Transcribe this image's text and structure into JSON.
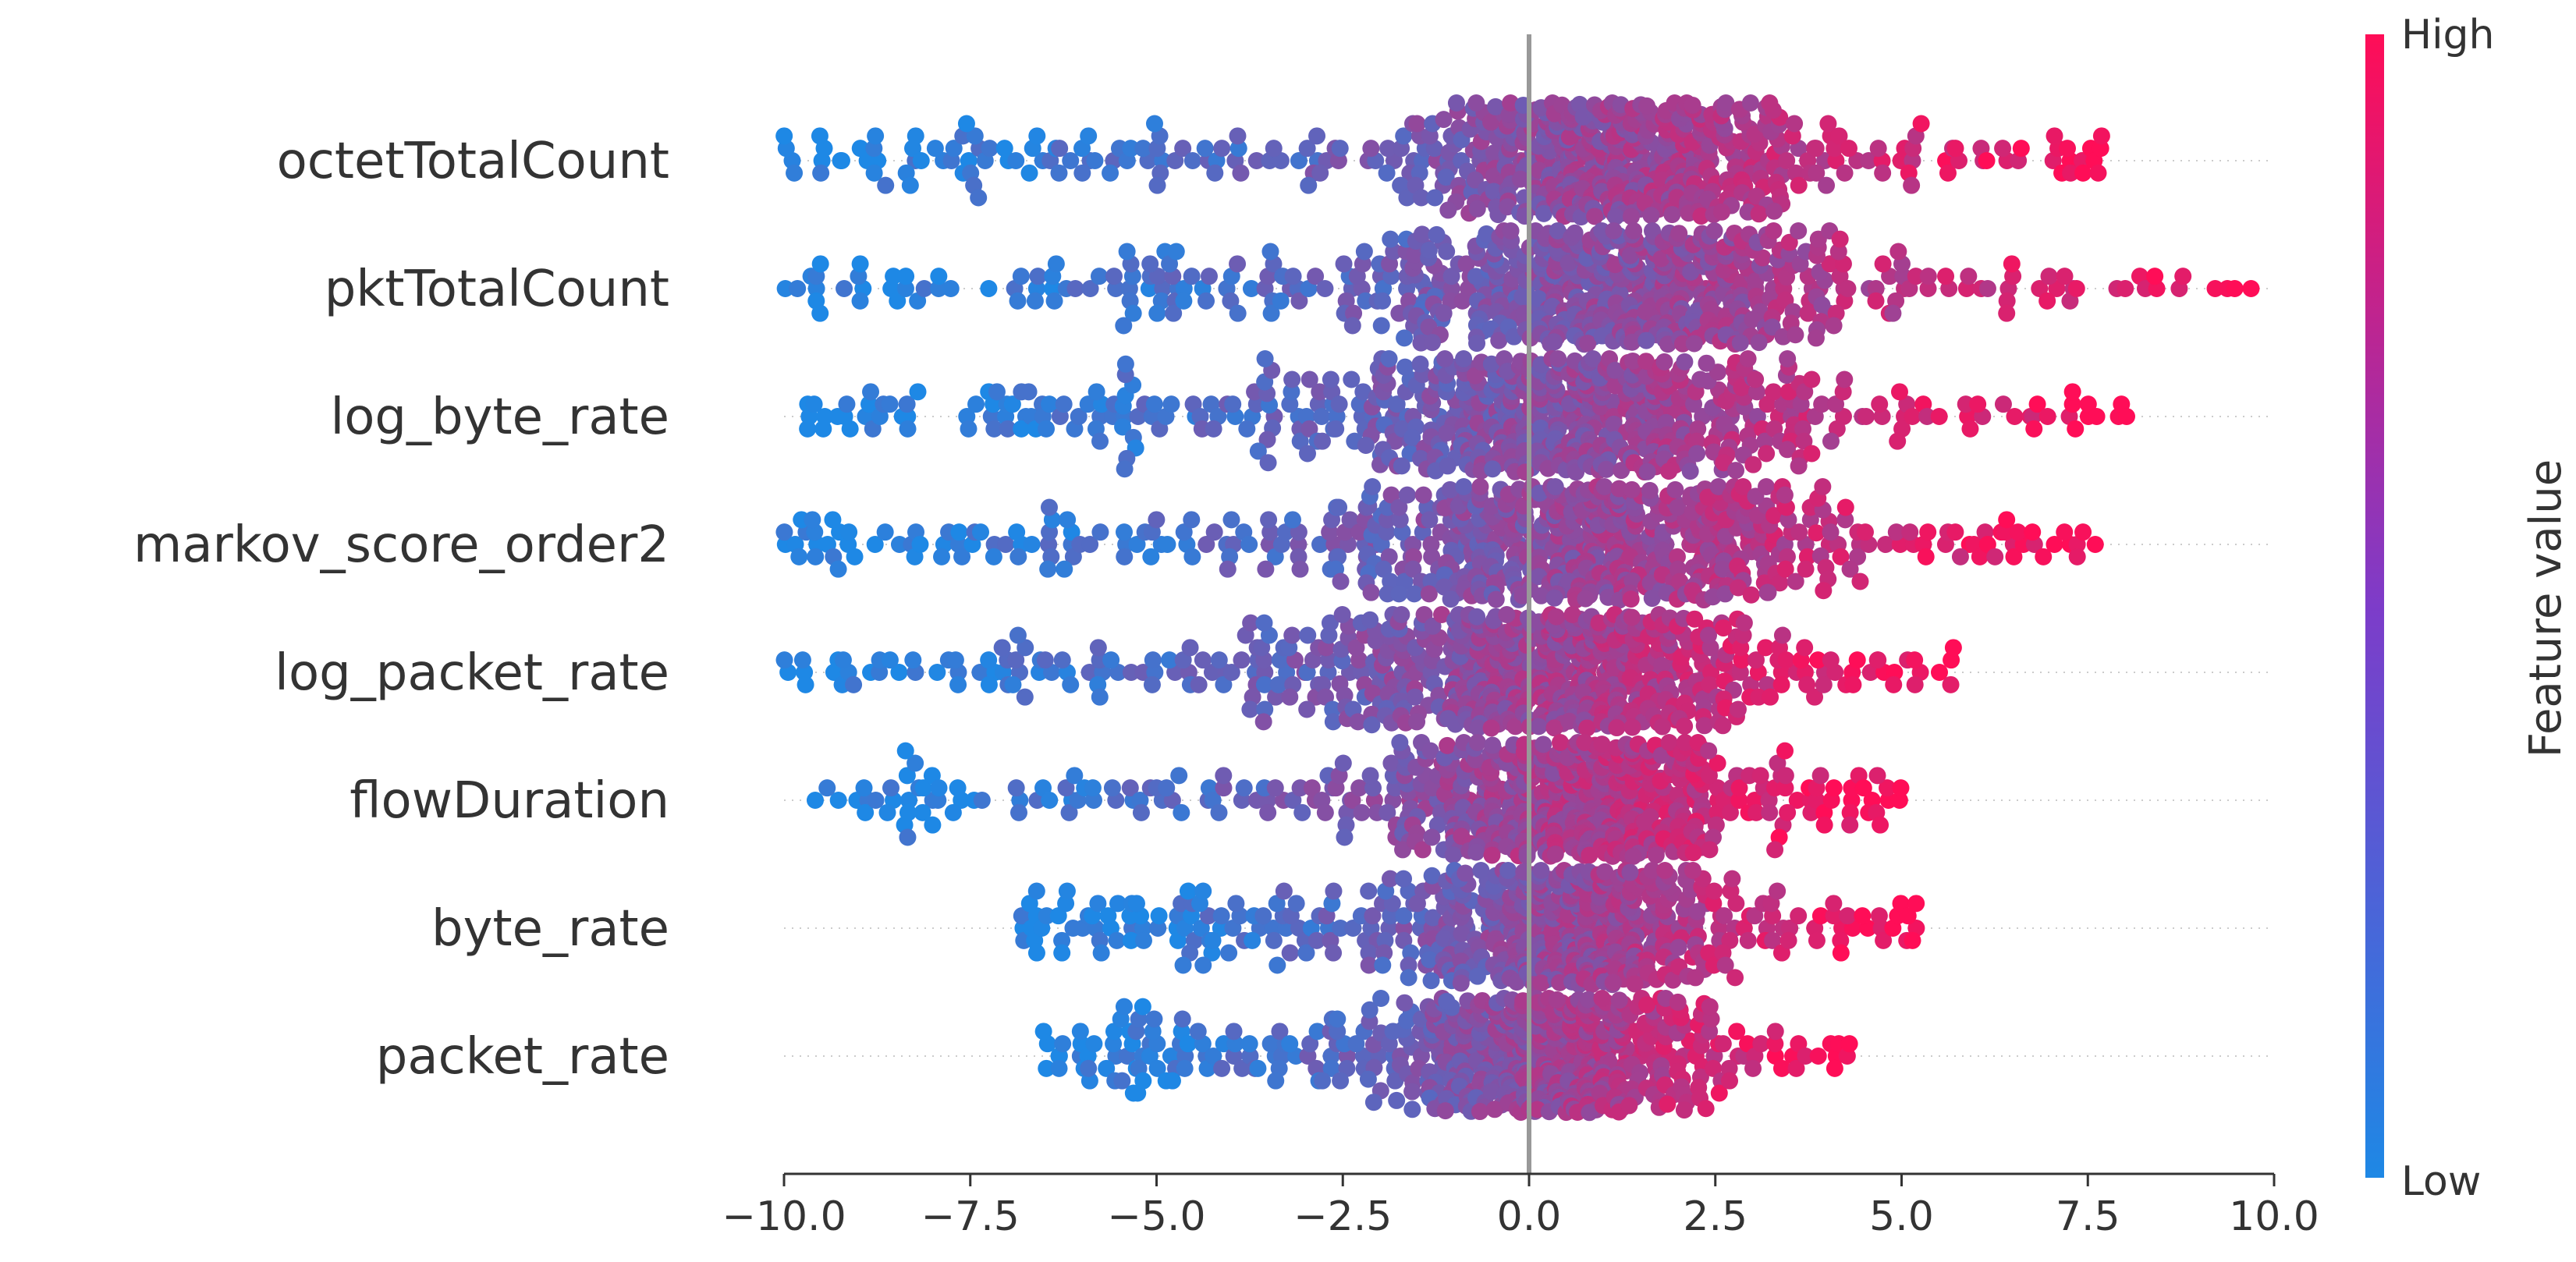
{
  "chart_data": {
    "type": "scatter",
    "subtype": "beeswarm",
    "title": "",
    "xlabel": "",
    "ylabel": "",
    "xlim": [
      -10.0,
      10.0
    ],
    "xticks": [
      -10.0,
      -7.5,
      -5.0,
      -2.5,
      0.0,
      2.5,
      5.0,
      7.5,
      10.0
    ],
    "xtick_labels": [
      "−10.0",
      "−7.5",
      "−5.0",
      "−2.5",
      "0.0",
      "2.5",
      "5.0",
      "7.5",
      "10.0"
    ],
    "features": [
      {
        "name": "octetTotalCount",
        "min": -10.0,
        "max": 7.7,
        "center": 1.2,
        "spread": 1.9,
        "low_tail": 2.2
      },
      {
        "name": "pktTotalCount",
        "min": -10.0,
        "max": 9.7,
        "center": 1.2,
        "spread": 2.3,
        "low_tail": 2.4
      },
      {
        "name": "log_byte_rate",
        "min": -9.7,
        "max": 8.0,
        "center": 0.6,
        "spread": 2.2,
        "low_tail": 2.5
      },
      {
        "name": "markov_score_order2",
        "min": -10.0,
        "max": 7.6,
        "center": 0.9,
        "spread": 2.3,
        "low_tail": 2.6
      },
      {
        "name": "log_packet_rate",
        "min": -10.0,
        "max": 5.7,
        "center": 0.3,
        "spread": 1.9,
        "low_tail": 2.4
      },
      {
        "name": "flowDuration",
        "min": -9.6,
        "max": 5.0,
        "center": 0.7,
        "spread": 1.5,
        "low_tail": 2.3
      },
      {
        "name": "byte_rate",
        "min": -6.8,
        "max": 5.2,
        "center": 0.6,
        "spread": 1.5,
        "low_tail": 1.9
      },
      {
        "name": "packet_rate",
        "min": -6.5,
        "max": 4.3,
        "center": 0.3,
        "spread": 1.3,
        "low_tail": 1.8
      }
    ],
    "vline_x": 0.0,
    "colorbar": {
      "title": "Feature value",
      "high_label": "High",
      "low_label": "Low",
      "low_color": "#1e88e5",
      "high_color": "#ff0d57"
    },
    "grid": false,
    "legend": "colorbar-right"
  }
}
